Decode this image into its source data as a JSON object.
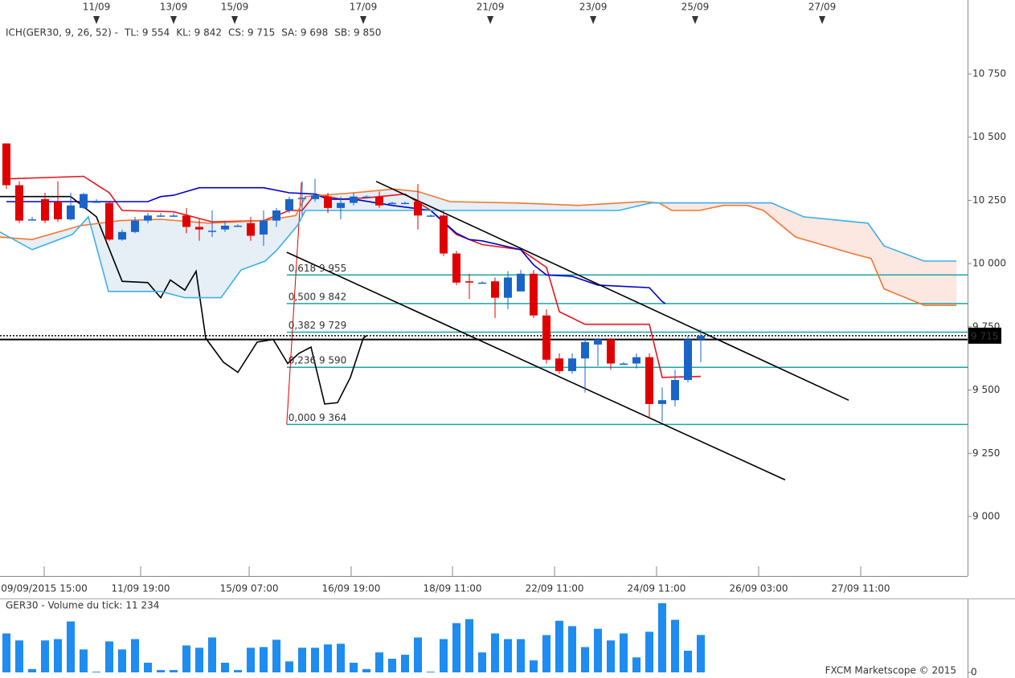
{
  "chart_data": [
    {
      "type": "candlestick",
      "legend_title": "ICH(GER30, 9, 26, 52) -",
      "legend_color": "#e8141c",
      "up_color": "#1a64c8",
      "down_color": "#e00000",
      "xlim": [
        -0.5,
        74.75
      ],
      "ylim": [
        8765,
        10985
      ],
      "yticks": [
        {
          "value": 9000,
          "label": "9 000"
        },
        {
          "value": 9250,
          "label": "9 250"
        },
        {
          "value": 9500,
          "label": "9 500"
        },
        {
          "value": 9750,
          "label": "9 750"
        },
        {
          "value": 10000,
          "label": "10 000"
        },
        {
          "value": 10250,
          "label": "10 250"
        },
        {
          "value": 10500,
          "label": "10 500"
        },
        {
          "value": 10750,
          "label": "10 750"
        }
      ],
      "xticks": [
        {
          "value": 2.94,
          "label": "09/09/2015 15:00"
        },
        {
          "value": 10.44,
          "label": "11/09 19:00"
        },
        {
          "value": 18.88,
          "label": "15/09 07:00"
        },
        {
          "value": 26.81,
          "label": "16/09 19:00"
        },
        {
          "value": 34.69,
          "label": "18/09 11:00"
        },
        {
          "value": 42.63,
          "label": "22/09 11:00"
        },
        {
          "value": 50.56,
          "label": "24/09 11:00"
        },
        {
          "value": 58.5,
          "label": "26/09 03:00"
        },
        {
          "value": 66.44,
          "label": "27/09 11:00"
        }
      ],
      "top_xticks": [
        {
          "value": 7,
          "label": "11/09"
        },
        {
          "value": 13,
          "label": "13/09"
        },
        {
          "value": 17.75,
          "label": "15/09"
        },
        {
          "value": 27.75,
          "label": "17/09"
        },
        {
          "value": 37.63,
          "label": "21/09"
        },
        {
          "value": 45.63,
          "label": "23/09"
        },
        {
          "value": 53.56,
          "label": "25/09"
        },
        {
          "value": 63.44,
          "label": "27/09"
        }
      ],
      "open": [
        10475,
        10310,
        10175,
        10255,
        10245,
        10175,
        10220,
        10245,
        10240,
        10095,
        10125,
        10170,
        10190,
        10190,
        10190,
        10145,
        10130,
        10135,
        10150,
        10160,
        10115,
        10170,
        10210,
        10260,
        10255,
        10265,
        10220,
        10240,
        10265,
        10265,
        10240,
        10240,
        10245,
        10190,
        10190,
        10040,
        9930,
        9925,
        9930,
        9865,
        9890,
        9960,
        9795,
        9625,
        9575,
        9625,
        9680,
        9700,
        9605,
        9605,
        9630,
        9445,
        9460,
        9540,
        9700
      ],
      "high": [
        10475,
        10325,
        10185,
        10280,
        10325,
        10280,
        10280,
        10255,
        10245,
        10135,
        10185,
        10200,
        10200,
        10200,
        10220,
        10175,
        10210,
        10170,
        10155,
        10185,
        10210,
        10220,
        10265,
        10325,
        10335,
        10280,
        10265,
        10280,
        10270,
        10285,
        10245,
        10245,
        10315,
        10195,
        10210,
        10050,
        9960,
        9930,
        9945,
        9970,
        9975,
        9975,
        9820,
        9645,
        9645,
        9705,
        9705,
        9705,
        9610,
        9645,
        9645,
        9510,
        9580,
        9715,
        9740
      ],
      "low": [
        10295,
        10160,
        10170,
        10160,
        10165,
        10170,
        10215,
        10240,
        10090,
        10090,
        10120,
        10160,
        10185,
        10185,
        10120,
        10090,
        10105,
        10125,
        10145,
        10090,
        10070,
        10145,
        10200,
        10190,
        10245,
        10200,
        10175,
        10230,
        10260,
        10220,
        10235,
        10235,
        10135,
        10185,
        10030,
        9915,
        9860,
        9920,
        9785,
        9820,
        9890,
        9785,
        9605,
        9565,
        9565,
        9490,
        9595,
        9580,
        9600,
        9585,
        9390,
        9375,
        9435,
        9530,
        9610
      ],
      "close": [
        10310,
        10170,
        10175,
        10170,
        10175,
        10230,
        10275,
        10245,
        10095,
        10125,
        10170,
        10190,
        10190,
        10190,
        10145,
        10135,
        10130,
        10150,
        10150,
        10110,
        10170,
        10210,
        10255,
        10260,
        10270,
        10220,
        10240,
        10265,
        10265,
        10230,
        10240,
        10240,
        10190,
        10190,
        10040,
        9925,
        9925,
        9925,
        9865,
        9945,
        9960,
        9795,
        9620,
        9575,
        9625,
        9690,
        9700,
        9605,
        9605,
        9630,
        9445,
        9460,
        9540,
        9700,
        9715
      ],
      "series": [
        {
          "name": "TL: 9 554",
          "color": "#e8141c",
          "x": [
            0,
            6,
            8,
            9,
            13,
            16,
            20,
            22,
            23,
            24,
            26,
            28,
            31,
            33,
            35,
            37,
            40,
            41,
            42,
            43,
            45,
            50,
            51,
            54
          ],
          "values": [
            10335,
            10345,
            10280,
            10210,
            10205,
            10165,
            10170,
            10210,
            10210,
            10275,
            10255,
            10260,
            10275,
            10210,
            10115,
            10075,
            10055,
            10020,
            9985,
            9810,
            9760,
            9760,
            9550,
            9554
          ]
        },
        {
          "name": "KL: 9 842",
          "color": "#0000c8",
          "x": [
            0,
            8,
            11,
            12,
            13,
            14,
            15,
            20,
            22,
            24,
            25,
            27,
            30,
            33,
            35,
            36,
            37,
            40,
            41,
            42,
            44,
            46,
            50,
            51,
            51.25
          ],
          "values": [
            10245,
            10245,
            10245,
            10265,
            10270,
            10285,
            10300,
            10300,
            10280,
            10275,
            10255,
            10255,
            10230,
            10210,
            10120,
            10095,
            10090,
            10055,
            9995,
            9955,
            9950,
            9915,
            9905,
            9850,
            9842
          ]
        },
        {
          "name": "CS: 9 715",
          "color": "#000000",
          "x": [
            -0.5,
            2,
            5,
            7,
            9,
            11,
            12,
            12.75,
            13.875,
            14.75,
            15.5,
            16.875,
            18,
            19.5,
            20.75,
            21.875,
            22.75,
            23.6875,
            24.75,
            25.75,
            26.75,
            27.75,
            28
          ],
          "values": [
            10265,
            10265,
            10265,
            10185,
            9930,
            9925,
            9865,
            9935,
            9895,
            9970,
            9705,
            9610,
            9570,
            9690,
            9700,
            9605,
            9645,
            9670,
            9445,
            9450,
            9550,
            9705,
            9715
          ]
        },
        {
          "name": "SA: 9 698",
          "color": "#f07830",
          "x": [
            -0.5,
            2,
            5.75,
            8.875,
            12,
            15.75,
            20.125,
            22.5,
            23.25,
            27,
            30.125,
            32,
            34.5,
            39.5,
            44.5,
            49.5,
            50.75,
            51.75,
            53.875,
            55.75,
            57.625,
            58.875,
            61.375,
            65.75,
            67.25,
            68.25,
            71.375,
            73.875
          ],
          "values": [
            10105,
            10095,
            10150,
            10170,
            10175,
            10160,
            10170,
            10190,
            10265,
            10280,
            10295,
            10285,
            10245,
            10240,
            10230,
            10245,
            10240,
            10210,
            10210,
            10230,
            10230,
            10210,
            10105,
            10040,
            10020,
            9900,
            9835,
            9835
          ]
        },
        {
          "name": "SB: 9 850",
          "color": "#3cb0e8",
          "x": [
            -0.5,
            2,
            5.125,
            6.375,
            7.9375,
            12,
            13.875,
            16.6875,
            18.25,
            20.125,
            21.0625,
            22.625,
            23.25,
            47.625,
            50.125,
            59.5,
            62,
            67,
            68.25,
            71.375,
            73.875
          ],
          "values": [
            10125,
            10055,
            10115,
            10185,
            9890,
            9890,
            9865,
            9865,
            9975,
            10010,
            10055,
            10150,
            10210,
            10210,
            10240,
            10240,
            10185,
            10160,
            10070,
            10010,
            10010
          ]
        }
      ],
      "fib_color": "#1aa6a6",
      "fib_start": 21.8,
      "fib_levels": [
        {
          "value": 9955,
          "label": "0,618 9 955"
        },
        {
          "value": 9842,
          "label": "0,500 9 842"
        },
        {
          "value": 9729,
          "label": "0,382 9 729"
        },
        {
          "value": 9590,
          "label": "0,236 9 590"
        },
        {
          "value": 9364,
          "label": "0,000 9 364"
        }
      ],
      "fib_range": {
        "x": [
          21.8,
          22.94
        ],
        "values": [
          9364,
          10320
        ]
      },
      "trendlines": [
        {
          "x": [
            28.75,
            65.5
          ],
          "values": [
            10325,
            9460
          ]
        },
        {
          "x": [
            21.8,
            60.56
          ],
          "values": [
            10045,
            9145
          ]
        }
      ],
      "horizontal_line": 9700,
      "current_price": {
        "value": 9715,
        "label": "9 715"
      }
    },
    {
      "type": "bar",
      "title": "GER30 - Volume du tick: 11 234",
      "color": "#1e8cf0",
      "values": [
        11700,
        9600,
        1000,
        9600,
        10000,
        15300,
        6900,
        200,
        9300,
        6900,
        10000,
        2900,
        700,
        700,
        8100,
        7400,
        10500,
        2900,
        700,
        7400,
        7600,
        9800,
        3300,
        7400,
        7400,
        8400,
        8600,
        2900,
        1000,
        6000,
        4100,
        5300,
        10500,
        200,
        10000,
        14800,
        16000,
        6000,
        11700,
        10000,
        10000,
        3600,
        11200,
        15500,
        13900,
        7600,
        13100,
        9600,
        11700,
        4500,
        12200,
        20800,
        15800,
        6500,
        11234
      ],
      "ylim": [
        0,
        21000
      ],
      "yticks": [
        0
      ],
      "watermark": "FXCM Marketscope © 2015"
    }
  ]
}
